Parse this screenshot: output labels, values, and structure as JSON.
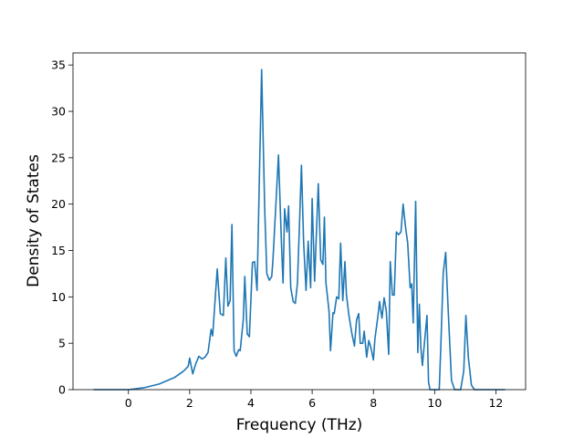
{
  "chart_data": {
    "type": "line",
    "xlabel": "Frequency (THz)",
    "ylabel": "Density of States",
    "x": [
      -1.14,
      0,
      0.5,
      1.0,
      1.5,
      1.8,
      1.95,
      2.0,
      2.1,
      2.2,
      2.3,
      2.4,
      2.5,
      2.6,
      2.7,
      2.75,
      2.9,
      3.0,
      3.1,
      3.18,
      3.25,
      3.32,
      3.38,
      3.45,
      3.52,
      3.6,
      3.65,
      3.75,
      3.8,
      3.88,
      3.95,
      4.05,
      4.12,
      4.2,
      4.35,
      4.45,
      4.52,
      4.6,
      4.68,
      4.72,
      4.8,
      4.9,
      5.0,
      5.05,
      5.1,
      5.18,
      5.23,
      5.3,
      5.38,
      5.45,
      5.52,
      5.6,
      5.65,
      5.72,
      5.8,
      5.87,
      5.95,
      6.0,
      6.08,
      6.2,
      6.28,
      6.35,
      6.4,
      6.45,
      6.55,
      6.6,
      6.68,
      6.72,
      6.8,
      6.87,
      6.93,
      7.0,
      7.07,
      7.12,
      7.2,
      7.3,
      7.38,
      7.45,
      7.52,
      7.57,
      7.65,
      7.7,
      7.78,
      7.85,
      7.92,
      8.0,
      8.05,
      8.15,
      8.2,
      8.28,
      8.35,
      8.42,
      8.5,
      8.55,
      8.62,
      8.68,
      8.75,
      8.82,
      8.9,
      8.97,
      9.05,
      9.12,
      9.2,
      9.25,
      9.3,
      9.38,
      9.45,
      9.5,
      9.55,
      9.6,
      9.68,
      9.75,
      9.8,
      9.85,
      10.15,
      10.2,
      10.28,
      10.36,
      10.45,
      10.55,
      10.65,
      10.85,
      10.95,
      11.02,
      11.1,
      11.2,
      11.3,
      12.3
    ],
    "values": [
      0,
      0,
      0.2,
      0.6,
      1.3,
      2.0,
      2.5,
      3.4,
      1.7,
      2.8,
      3.6,
      3.3,
      3.5,
      4.0,
      6.5,
      5.8,
      13.0,
      8.2,
      8.0,
      14.2,
      9.0,
      9.6,
      17.8,
      4.2,
      3.6,
      4.3,
      4.2,
      7.5,
      12.2,
      6.0,
      5.7,
      13.7,
      13.8,
      10.7,
      34.5,
      19.5,
      12.5,
      11.8,
      12.2,
      14.0,
      19.0,
      25.3,
      15.5,
      11.5,
      19.5,
      17.0,
      19.8,
      11.0,
      9.5,
      9.3,
      11.5,
      19.2,
      24.2,
      16.0,
      10.7,
      16.0,
      11.0,
      20.6,
      11.7,
      22.2,
      14.0,
      13.5,
      18.6,
      11.5,
      8.5,
      4.2,
      8.3,
      8.2,
      10.0,
      9.8,
      15.8,
      9.6,
      13.8,
      10.2,
      8.0,
      6.0,
      4.7,
      7.5,
      8.2,
      5.0,
      5.0,
      6.3,
      3.5,
      5.3,
      4.5,
      3.2,
      5.5,
      8.0,
      9.5,
      7.7,
      9.9,
      8.5,
      3.8,
      13.8,
      10.2,
      10.2,
      17.0,
      16.7,
      17.0,
      20.0,
      17.5,
      15.8,
      11.0,
      11.4,
      7.2,
      20.3,
      4.0,
      9.2,
      4.5,
      2.6,
      5.5,
      8.0,
      0.8,
      0,
      0,
      4.5,
      12.6,
      14.8,
      8.0,
      1.0,
      0,
      0,
      2.0,
      8.0,
      3.5,
      0.5,
      0,
      0
    ],
    "color": "#1f77b4",
    "xlim": [
      -1.81,
      12.97
    ],
    "xticks": [
      0,
      2,
      4,
      6,
      8,
      10,
      12
    ],
    "ylim": [
      0,
      36.3
    ],
    "yticks": [
      0,
      5,
      10,
      15,
      20,
      25,
      30,
      35
    ]
  }
}
